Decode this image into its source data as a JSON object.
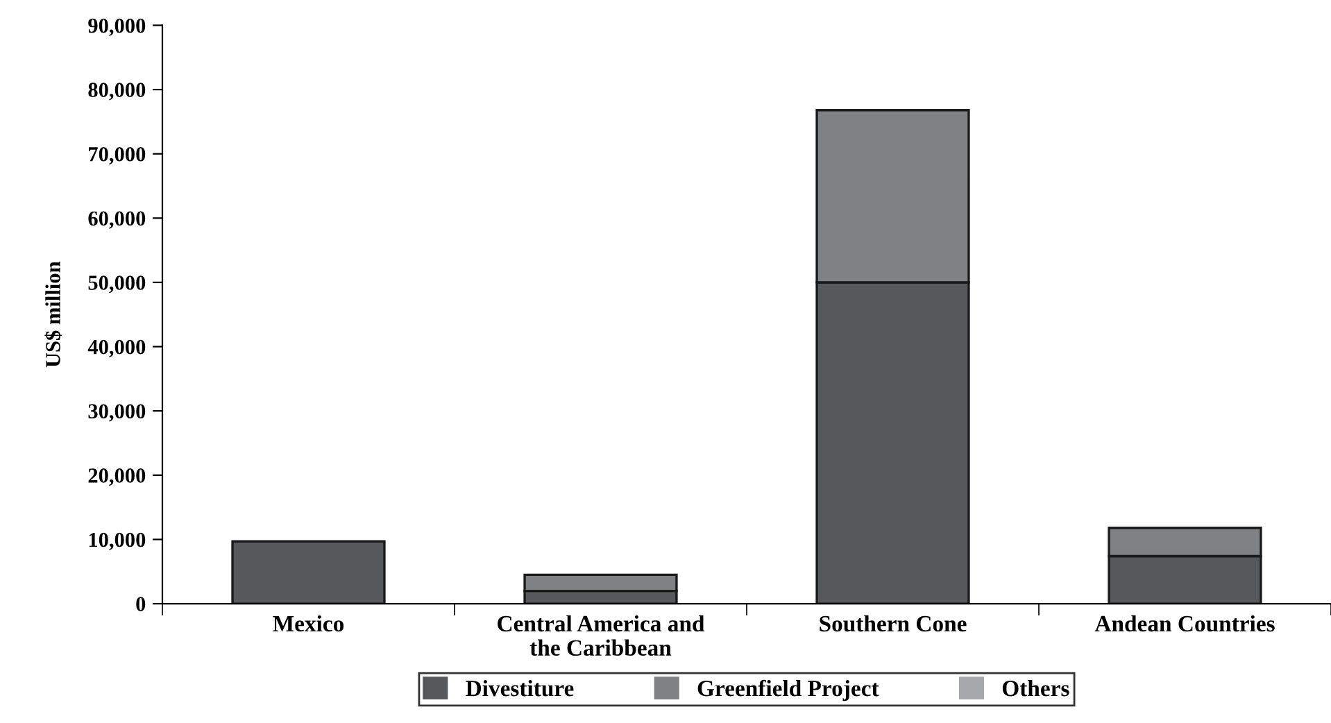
{
  "chart_data": {
    "type": "bar",
    "stacked": true,
    "ylabel": "US$ million",
    "categories": [
      "Mexico",
      "Central America and\nthe Caribbean",
      "Southern Cone",
      "Andean Countries"
    ],
    "series": [
      {
        "name": "Divestiture",
        "color": "#57585c",
        "values": [
          9700,
          2000,
          50000,
          7400
        ]
      },
      {
        "name": "Greenfield Project",
        "color": "#808183",
        "values": [
          null,
          2500,
          26800,
          4400
        ]
      },
      {
        "name": "Others",
        "color": "#a7a8ab",
        "values": [
          null,
          null,
          null,
          null
        ]
      }
    ],
    "ylim": [
      0,
      90000
    ],
    "yticks": [
      {
        "value": 0,
        "label": "0"
      },
      {
        "value": 10000,
        "label": "10,000"
      },
      {
        "value": 20000,
        "label": "20,000"
      },
      {
        "value": 30000,
        "label": "30,000"
      },
      {
        "value": 40000,
        "label": "40,000"
      },
      {
        "value": 50000,
        "label": "50,000"
      },
      {
        "value": 60000,
        "label": "60,000"
      },
      {
        "value": 70000,
        "label": "70,000"
      },
      {
        "value": 80000,
        "label": "80,000"
      },
      {
        "value": 90000,
        "label": "90,000"
      }
    ],
    "grid": false,
    "legend": "bottom"
  }
}
